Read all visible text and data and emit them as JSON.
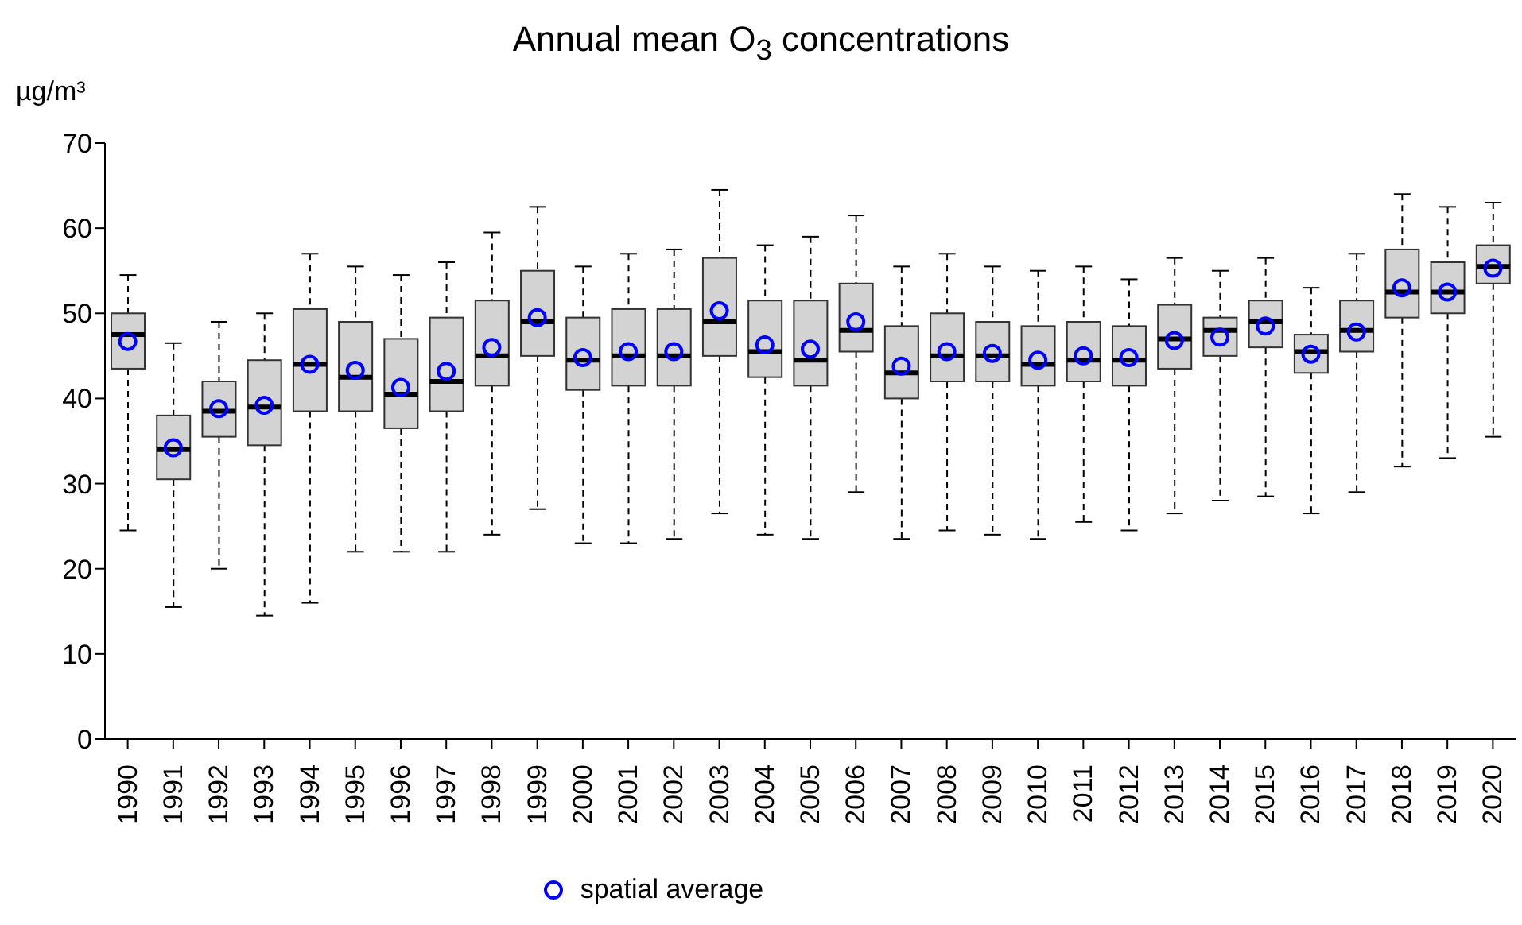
{
  "chart_data": {
    "type": "box",
    "title": "Annual mean O$_{3}$ concentrations",
    "ylabel": "µg/m³",
    "categories": [
      "1990",
      "1991",
      "1992",
      "1993",
      "1994",
      "1995",
      "1996",
      "1997",
      "1998",
      "1999",
      "2000",
      "2001",
      "2002",
      "2003",
      "2004",
      "2005",
      "2006",
      "2007",
      "2008",
      "2009",
      "2010",
      "2011",
      "2012",
      "2013",
      "2014",
      "2015",
      "2016",
      "2017",
      "2018",
      "2019",
      "2020"
    ],
    "color": "#d3d3d3",
    "boxes": [
      {
        "low": 24.5,
        "q1": 43.5,
        "median": 47.5,
        "q3": 50,
        "high": 54.5
      },
      {
        "low": 15.5,
        "q1": 30.5,
        "median": 34,
        "q3": 38,
        "high": 46.5
      },
      {
        "low": 20,
        "q1": 35.5,
        "median": 38.5,
        "q3": 42,
        "high": 49
      },
      {
        "low": 14.5,
        "q1": 34.5,
        "median": 39,
        "q3": 44.5,
        "high": 50
      },
      {
        "low": 16,
        "q1": 38.5,
        "median": 44,
        "q3": 50.5,
        "high": 57
      },
      {
        "low": 22,
        "q1": 38.5,
        "median": 42.5,
        "q3": 49,
        "high": 55.5
      },
      {
        "low": 22,
        "q1": 36.5,
        "median": 40.5,
        "q3": 47,
        "high": 54.5
      },
      {
        "low": 22,
        "q1": 38.5,
        "median": 42,
        "q3": 49.5,
        "high": 56
      },
      {
        "low": 24,
        "q1": 41.5,
        "median": 45,
        "q3": 51.5,
        "high": 59.5
      },
      {
        "low": 27,
        "q1": 45,
        "median": 49,
        "q3": 55,
        "high": 62.5
      },
      {
        "low": 23,
        "q1": 41,
        "median": 44.5,
        "q3": 49.5,
        "high": 55.5
      },
      {
        "low": 23,
        "q1": 41.5,
        "median": 45,
        "q3": 50.5,
        "high": 57
      },
      {
        "low": 23.5,
        "q1": 41.5,
        "median": 45,
        "q3": 50.5,
        "high": 57.5
      },
      {
        "low": 26.5,
        "q1": 45,
        "median": 49,
        "q3": 56.5,
        "high": 64.5
      },
      {
        "low": 24,
        "q1": 42.5,
        "median": 45.5,
        "q3": 51.5,
        "high": 58
      },
      {
        "low": 23.5,
        "q1": 41.5,
        "median": 44.5,
        "q3": 51.5,
        "high": 59
      },
      {
        "low": 29,
        "q1": 45.5,
        "median": 48,
        "q3": 53.5,
        "high": 61.5
      },
      {
        "low": 23.5,
        "q1": 40,
        "median": 43,
        "q3": 48.5,
        "high": 55.5
      },
      {
        "low": 24.5,
        "q1": 42,
        "median": 45,
        "q3": 50,
        "high": 57
      },
      {
        "low": 24,
        "q1": 42,
        "median": 45,
        "q3": 49,
        "high": 55.5
      },
      {
        "low": 23.5,
        "q1": 41.5,
        "median": 44,
        "q3": 48.5,
        "high": 55
      },
      {
        "low": 25.5,
        "q1": 42,
        "median": 44.5,
        "q3": 49,
        "high": 55.5
      },
      {
        "low": 24.5,
        "q1": 41.5,
        "median": 44.5,
        "q3": 48.5,
        "high": 54
      },
      {
        "low": 26.5,
        "q1": 43.5,
        "median": 47,
        "q3": 51,
        "high": 56.5
      },
      {
        "low": 28,
        "q1": 45,
        "median": 48,
        "q3": 49.5,
        "high": 55
      },
      {
        "low": 28.5,
        "q1": 46,
        "median": 49,
        "q3": 51.5,
        "high": 56.5
      },
      {
        "low": 26.5,
        "q1": 43,
        "median": 45.5,
        "q3": 47.5,
        "high": 53
      },
      {
        "low": 29,
        "q1": 45.5,
        "median": 48,
        "q3": 51.5,
        "high": 57
      },
      {
        "low": 32,
        "q1": 49.5,
        "median": 52.5,
        "q3": 57.5,
        "high": 64
      },
      {
        "low": 33,
        "q1": 50,
        "median": 52.5,
        "q3": 56,
        "high": 62.5
      },
      {
        "low": 35.5,
        "q1": 53.5,
        "median": 55.5,
        "q3": 58,
        "high": 63
      }
    ],
    "series": [
      {
        "name": "spatial average",
        "type": "scatter",
        "color": "#0000ff",
        "values": [
          46.7,
          34.2,
          38.8,
          39.2,
          44,
          43.3,
          41.3,
          43.2,
          46,
          49.5,
          44.8,
          45.5,
          45.5,
          50.3,
          46.3,
          45.8,
          49,
          43.8,
          45.5,
          45.3,
          44.5,
          45,
          44.8,
          46.8,
          47.2,
          48.5,
          45.2,
          47.8,
          53,
          52.5,
          55.3
        ]
      }
    ],
    "marker": "circle",
    "legend": "bottom",
    "grid": false,
    "ylim": [
      0,
      70
    ],
    "yticks": [
      0,
      10,
      20,
      30,
      40,
      50,
      60,
      70
    ]
  }
}
